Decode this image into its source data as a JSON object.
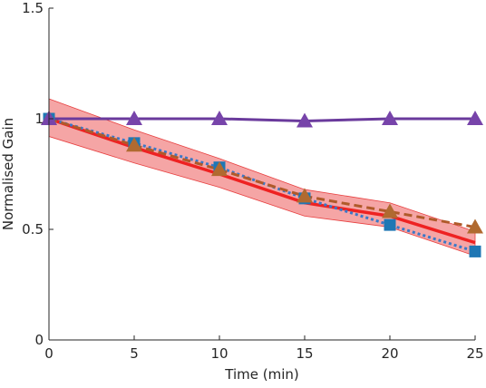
{
  "chart_data": {
    "type": "line",
    "xlabel": "Time (min)",
    "ylabel": "Normalised Gain",
    "xlim": [
      0,
      25
    ],
    "ylim": [
      0,
      1.5
    ],
    "xticks": [
      0,
      5,
      10,
      15,
      20,
      25
    ],
    "yticks": [
      0,
      0.5,
      1,
      1.5
    ],
    "ytick_labels": [
      "0",
      "0.5",
      "1",
      "1.5"
    ],
    "x": [
      0,
      5,
      10,
      15,
      20,
      25
    ],
    "band": {
      "color": "#f4a0a0",
      "edge_color": "#e84040",
      "upper": [
        1.09,
        0.95,
        0.82,
        0.68,
        0.62,
        0.49
      ],
      "lower": [
        0.92,
        0.8,
        0.69,
        0.56,
        0.51,
        0.38
      ]
    },
    "series": [
      {
        "style": "solid-line",
        "color": "#ee2222",
        "marker": "none",
        "values": [
          1.0,
          0.87,
          0.75,
          0.62,
          0.56,
          0.44
        ]
      },
      {
        "style": "dotted-line",
        "color": "#3a78c8",
        "marker": "square",
        "marker_color": "#1f77b4",
        "values": [
          1.0,
          0.89,
          0.78,
          0.64,
          0.52,
          0.4
        ]
      },
      {
        "style": "dashed-line",
        "color": "#b05a2a",
        "marker": "triangle",
        "marker_color": "#b06a30",
        "values": [
          1.0,
          0.88,
          0.77,
          0.65,
          0.58,
          0.51
        ]
      },
      {
        "style": "solid-line",
        "color": "#6a3a9c",
        "marker": "triangle",
        "marker_color": "#7744aa",
        "values": [
          1.0,
          1.0,
          1.0,
          0.99,
          1.0,
          1.0
        ]
      }
    ]
  }
}
